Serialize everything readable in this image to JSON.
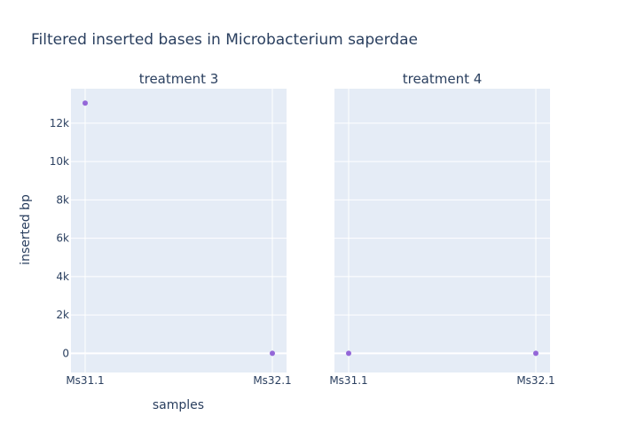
{
  "chart_data": {
    "type": "scatter",
    "title": "Filtered inserted bases in Microbacterium saperdae",
    "xlabel": "samples",
    "ylabel": "inserted bp",
    "ylim": [
      -1000,
      13800
    ],
    "yticks": [
      0,
      2000,
      4000,
      6000,
      8000,
      10000,
      12000
    ],
    "ytick_labels": [
      "0",
      "2k",
      "4k",
      "6k",
      "8k",
      "10k",
      "12k"
    ],
    "grid": true,
    "marker_color": "#9467d8",
    "panels": [
      {
        "title": "treatment 3",
        "categories": [
          "Ms31.1",
          "Ms32.1"
        ],
        "values": [
          13050,
          0
        ]
      },
      {
        "title": "treatment 4",
        "categories": [
          "Ms31.1",
          "Ms32.1"
        ],
        "values": [
          0,
          0
        ]
      }
    ]
  }
}
